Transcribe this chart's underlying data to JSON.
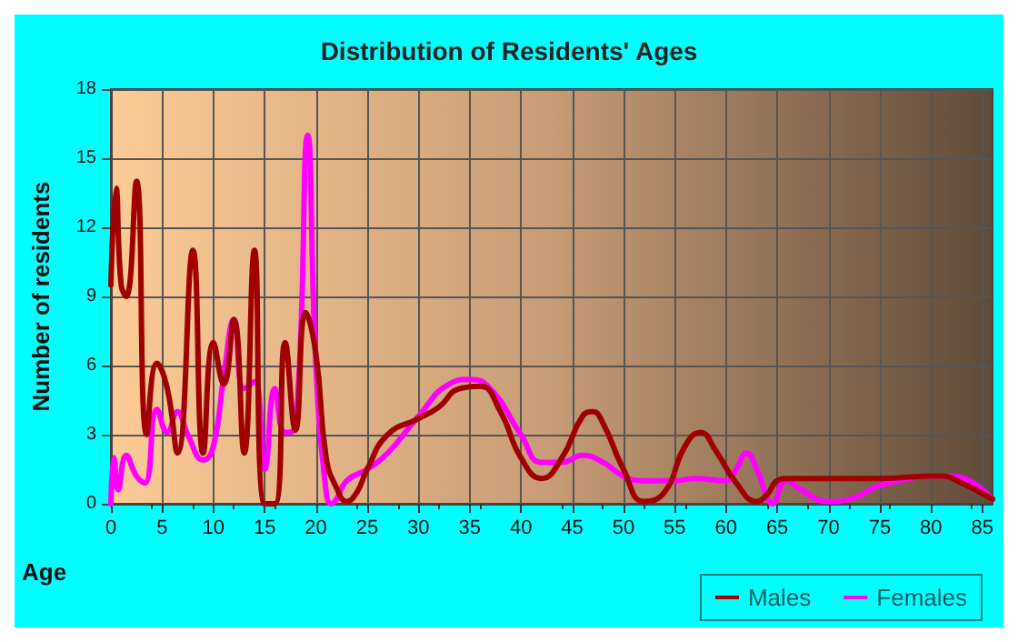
{
  "chart_data": {
    "type": "line",
    "title": "Distribution of Residents' Ages",
    "xlabel": "Age",
    "ylabel": "Number of residents",
    "xlim": [
      0,
      86
    ],
    "xticks": [
      0,
      5,
      10,
      15,
      20,
      25,
      30,
      35,
      40,
      45,
      50,
      55,
      60,
      65,
      70,
      75,
      80,
      85
    ],
    "ylim": [
      0,
      18
    ],
    "yticks": [
      0,
      3,
      6,
      9,
      12,
      15,
      18
    ],
    "grid": true,
    "legend": "bottom right",
    "marker": "none",
    "line_style": "solid",
    "series": [
      {
        "name": "Males",
        "color": "#a00000",
        "x": [
          0,
          0.5,
          1,
          1.5,
          2.5,
          3.5,
          4.5,
          5.5,
          6.5,
          8,
          9,
          10,
          11,
          12,
          13,
          14,
          15,
          16,
          17,
          18,
          19,
          20,
          21,
          22,
          23,
          24,
          25,
          27,
          30,
          32,
          34,
          36,
          38,
          40,
          42,
          44,
          46,
          47,
          48,
          50,
          52,
          54,
          56,
          57.5,
          59,
          61,
          63,
          64,
          65,
          66,
          70,
          75,
          80,
          81,
          83,
          86
        ],
        "values": [
          9.5,
          13.7,
          9.5,
          9,
          14,
          3,
          6.1,
          5,
          2.2,
          11,
          2.2,
          7,
          5.2,
          8,
          2.2,
          11,
          0,
          0,
          7,
          3.2,
          8.3,
          6.5,
          2,
          0.7,
          0.1,
          0.5,
          1.5,
          3,
          3.7,
          4.2,
          5,
          5.1,
          4,
          2,
          1.1,
          2,
          3.8,
          4,
          3.5,
          1.5,
          0.1,
          0.5,
          2.5,
          3.1,
          2.3,
          0.9,
          0.1,
          0.4,
          1,
          1.1,
          1.1,
          1.1,
          1.2,
          1.2,
          0.9,
          0.2
        ]
      },
      {
        "name": "Females",
        "color": "#ff00ff",
        "x": [
          0,
          0.3,
          0.7,
          1.5,
          2.5,
          3.3,
          4.5,
          5.5,
          6.5,
          7.5,
          9,
          10,
          11,
          12,
          13,
          14,
          15,
          16,
          17,
          18,
          19.2,
          20,
          21,
          21.5,
          22,
          23,
          25,
          27,
          30,
          33,
          35,
          37,
          40,
          42,
          44,
          46,
          48,
          50,
          52,
          55,
          57,
          60,
          61,
          62,
          63,
          64,
          64.5,
          65.5,
          66,
          67,
          70,
          72,
          75,
          78,
          80,
          82,
          86
        ],
        "values": [
          0,
          2,
          0.6,
          2.1,
          1.2,
          0.9,
          4.1,
          3.1,
          4,
          3,
          1.9,
          2.5,
          5.5,
          8,
          5,
          5.3,
          1.5,
          5,
          3.1,
          3.3,
          16,
          6,
          0.5,
          0,
          0.2,
          1,
          1.5,
          2.2,
          3.8,
          5.2,
          5.4,
          5,
          3,
          1.8,
          1.8,
          2.1,
          1.8,
          1.2,
          1,
          1,
          1.1,
          1,
          1.5,
          2.2,
          1.5,
          0.3,
          0,
          0.9,
          1,
          0.7,
          0.1,
          0.2,
          0.8,
          1.1,
          1.2,
          1.2,
          0.2
        ]
      }
    ]
  }
}
